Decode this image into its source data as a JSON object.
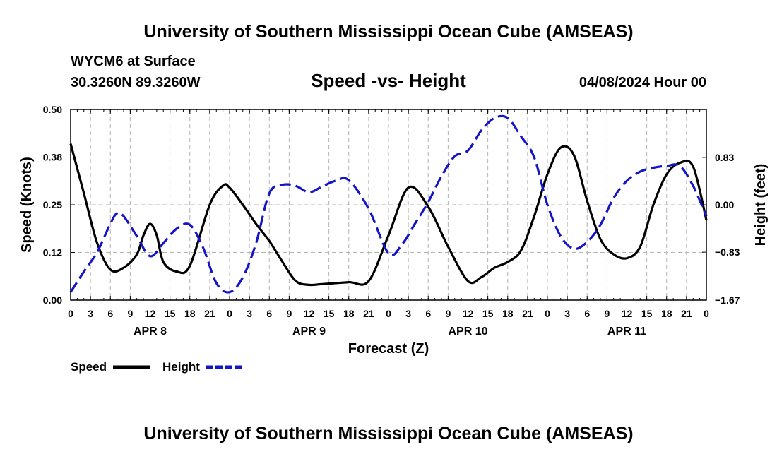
{
  "header": {
    "title": "University of Southern Mississippi Ocean Cube (AMSEAS)",
    "station": "WYCM6 at Surface",
    "coords": "30.3260N  89.3260W",
    "subtitle": "Speed -vs- Height",
    "datetime": "04/08/2024 Hour 00"
  },
  "footer": {
    "title": "University of Southern Mississippi Ocean Cube (AMSEAS)"
  },
  "colors": {
    "speed": "#000000",
    "height": "#1515c8",
    "grid": "#b4b4b4"
  },
  "chart_data": {
    "type": "line",
    "title": "Speed -vs- Height",
    "xlabel": "Forecast (Z)",
    "ylabel": "Speed (Knots)",
    "y2label": "Height (feet)",
    "xlim": [
      0,
      96
    ],
    "ylim": [
      0,
      0.5
    ],
    "y2lim": [
      -1.67,
      1.67
    ],
    "x_ticks": [
      0,
      3,
      6,
      9,
      12,
      15,
      18,
      21,
      24,
      27,
      30,
      33,
      36,
      39,
      42,
      45,
      48,
      51,
      54,
      57,
      60,
      63,
      66,
      69,
      72,
      75,
      78,
      81,
      84,
      87,
      90,
      93,
      96
    ],
    "x_tick_labels": [
      "0",
      "3",
      "6",
      "9",
      "12",
      "15",
      "18",
      "21",
      "0",
      "3",
      "6",
      "9",
      "12",
      "15",
      "18",
      "21",
      "0",
      "3",
      "6",
      "9",
      "12",
      "15",
      "18",
      "21",
      "0",
      "3",
      "6",
      "9",
      "12",
      "15",
      "18",
      "21",
      "0"
    ],
    "day_labels": [
      {
        "x": 12,
        "label": "APR 8"
      },
      {
        "x": 36,
        "label": "APR 9"
      },
      {
        "x": 60,
        "label": "APR 10"
      },
      {
        "x": 84,
        "label": "APR 11"
      }
    ],
    "y_ticks": [
      0,
      0.125,
      0.25,
      0.375,
      0.5
    ],
    "y_tick_labels": [
      "0.00",
      "0.12",
      "0.25",
      "0.38",
      "0.50"
    ],
    "y2_ticks": [
      -1.67,
      -0.83,
      0,
      0.83
    ],
    "y2_tick_labels": [
      "−1.67",
      "−0.83",
      "0.00",
      "0.83"
    ],
    "grid": true,
    "series": [
      {
        "name": "Speed",
        "axis": "left",
        "style": "solid",
        "x": [
          0,
          2,
          4,
          6,
          8,
          10,
          11,
          12,
          13,
          14,
          16,
          18,
          21,
          23,
          24,
          26,
          28,
          30,
          32,
          34,
          36,
          38,
          42,
          45,
          48,
          51,
          54,
          57,
          60,
          62,
          64,
          66,
          68,
          70,
          72,
          74,
          76,
          78,
          80,
          82,
          84,
          86,
          88,
          90,
          92,
          94,
          96
        ],
        "y": [
          0.41,
          0.28,
          0.15,
          0.08,
          0.085,
          0.12,
          0.17,
          0.2,
          0.17,
          0.1,
          0.075,
          0.09,
          0.25,
          0.3,
          0.295,
          0.25,
          0.2,
          0.155,
          0.1,
          0.05,
          0.04,
          0.042,
          0.047,
          0.05,
          0.17,
          0.295,
          0.245,
          0.14,
          0.05,
          0.06,
          0.085,
          0.1,
          0.13,
          0.22,
          0.33,
          0.4,
          0.38,
          0.26,
          0.16,
          0.12,
          0.11,
          0.14,
          0.25,
          0.33,
          0.36,
          0.35,
          0.21
        ]
      },
      {
        "name": "Height",
        "axis": "right",
        "style": "dashed",
        "x": [
          0,
          2,
          4,
          6,
          7,
          8,
          10,
          12,
          14,
          16,
          18,
          20,
          22,
          24,
          26,
          28,
          30,
          32,
          34,
          36,
          38,
          40,
          42,
          45,
          48,
          50,
          52,
          54,
          56,
          58,
          60,
          62,
          64,
          66,
          68,
          70,
          72,
          74,
          76,
          78,
          80,
          82,
          84,
          86,
          88,
          90,
          92,
          94,
          96
        ],
        "y": [
          -1.53,
          -1.17,
          -0.83,
          -0.33,
          -0.15,
          -0.2,
          -0.55,
          -0.9,
          -0.67,
          -0.42,
          -0.35,
          -0.75,
          -1.37,
          -1.53,
          -1.27,
          -0.67,
          0.2,
          0.35,
          0.33,
          0.22,
          0.32,
          0.42,
          0.43,
          -0.07,
          -0.85,
          -0.7,
          -0.33,
          0.05,
          0.5,
          0.85,
          0.95,
          1.3,
          1.52,
          1.52,
          1.2,
          0.83,
          0.0,
          -0.55,
          -0.77,
          -0.65,
          -0.35,
          0.12,
          0.42,
          0.58,
          0.65,
          0.68,
          0.68,
          0.33,
          -0.2
        ]
      }
    ]
  },
  "legend": {
    "speed_label": "Speed",
    "height_label": "Height"
  }
}
